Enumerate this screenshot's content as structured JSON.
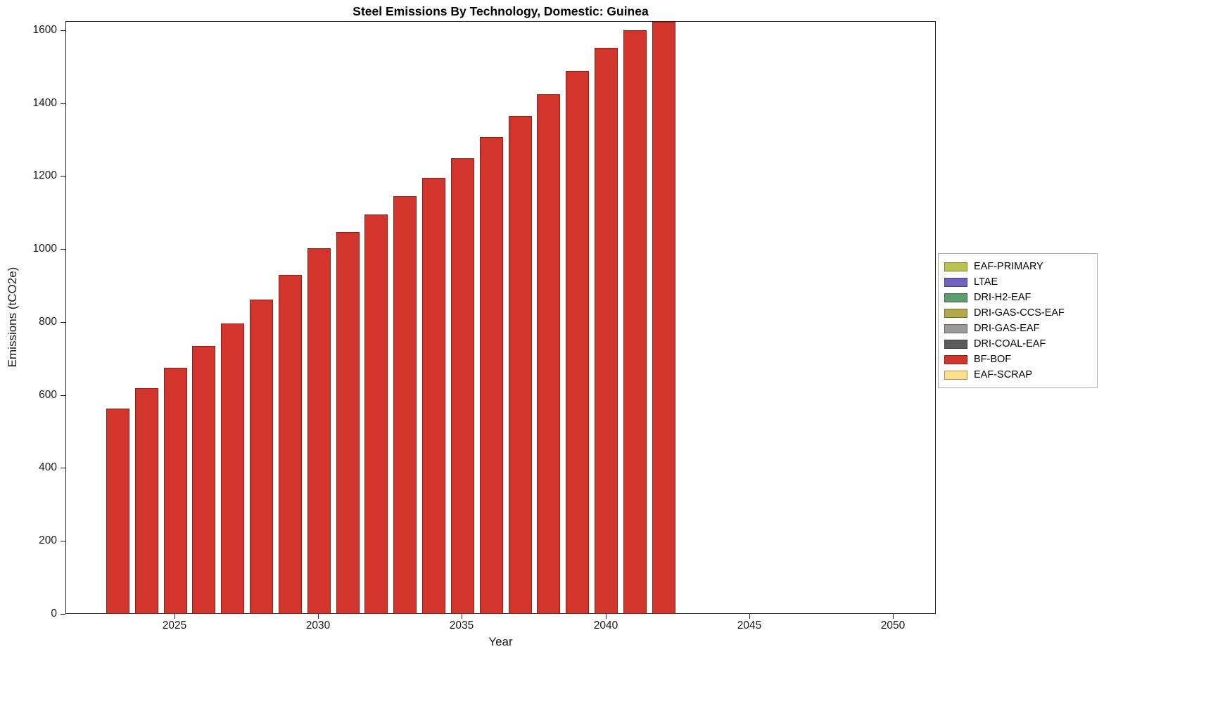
{
  "chart_data": {
    "type": "bar",
    "title": "Steel Emissions By Technology, Domestic: Guinea",
    "xlabel": "Year",
    "ylabel": "Emissions (tCO2e)",
    "xlim": [
      2021.2,
      2051.5
    ],
    "ylim": [
      0,
      1625
    ],
    "xticks": [
      2025,
      2030,
      2035,
      2040,
      2045,
      2050
    ],
    "yticks": [
      0,
      200,
      400,
      600,
      800,
      1000,
      1200,
      1400,
      1600
    ],
    "grid": false,
    "legend_position": "right",
    "categories": [
      2023,
      2024,
      2025,
      2026,
      2027,
      2028,
      2029,
      2030,
      2031,
      2032,
      2033,
      2034,
      2035,
      2036,
      2037,
      2038,
      2039,
      2040,
      2041,
      2042
    ],
    "series": [
      {
        "name": "BF-BOF",
        "color": "#d2352b",
        "values": [
          565,
          620,
          676,
          736,
          798,
          863,
          932,
          1004,
          1048,
          1096,
          1146,
          1198,
          1252,
          1308,
          1366,
          1427,
          1490,
          1553,
          1602,
          1650
        ]
      }
    ],
    "legend": [
      {
        "label": "EAF-PRIMARY",
        "color": "#b9c34d"
      },
      {
        "label": "LTAE",
        "color": "#6f63bf"
      },
      {
        "label": "DRI-H2-EAF",
        "color": "#5f9c6e"
      },
      {
        "label": "DRI-GAS-CCS-EAF",
        "color": "#b3a94c"
      },
      {
        "label": "DRI-GAS-EAF",
        "color": "#9a9a9a"
      },
      {
        "label": "DRI-COAL-EAF",
        "color": "#5b5b5b"
      },
      {
        "label": "BF-BOF",
        "color": "#d2352b"
      },
      {
        "label": "EAF-SCRAP",
        "color": "#fbdf8a"
      }
    ]
  }
}
